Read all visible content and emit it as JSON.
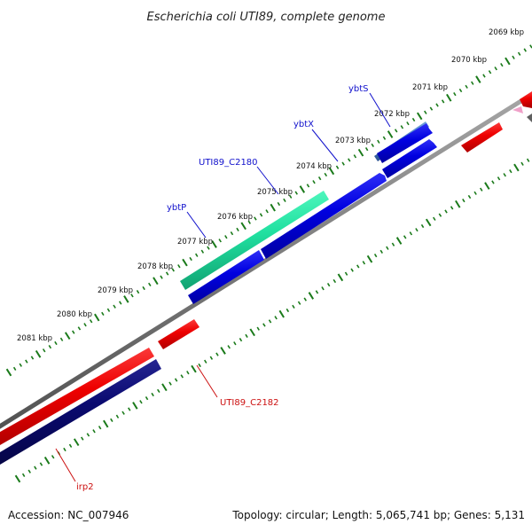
{
  "title": "Escherichia coli UTI89, complete genome",
  "footer": {
    "accession": "Accession: NC_007946",
    "summary": "Topology: circular; Length: 5,065,741 bp; Genes: 5,131"
  },
  "ticks": [
    {
      "label": "2069 kbp"
    },
    {
      "label": "2070 kbp"
    },
    {
      "label": "2071 kbp"
    },
    {
      "label": "2072 kbp"
    },
    {
      "label": "2073 kbp"
    },
    {
      "label": "2074 kbp"
    },
    {
      "label": "2075 kbp"
    },
    {
      "label": "2076 kbp"
    },
    {
      "label": "2077 kbp"
    },
    {
      "label": "2078 kbp"
    },
    {
      "label": "2079 kbp"
    },
    {
      "label": "2080 kbp"
    },
    {
      "label": "2081 kbp"
    }
  ],
  "gene_labels": [
    {
      "label": "ybtS",
      "color": "#1010cc"
    },
    {
      "label": "ybtX",
      "color": "#1010cc"
    },
    {
      "label": "UTI89_C2180",
      "color": "#1010cc"
    },
    {
      "label": "ybtP",
      "color": "#1010cc"
    },
    {
      "label": "UTI89_C2182",
      "color": "#cc1010"
    },
    {
      "label": "irp2",
      "color": "#cc1010"
    }
  ],
  "colors": {
    "backbone": "#808080",
    "forward_gene": "#0000e0",
    "reverse_gene": "#ee0000",
    "dark_gene": "#0a0a70",
    "highlight_green": "#20e0a0",
    "highlight_steel": "#4a80c0",
    "tick": "#1a7a1a"
  }
}
